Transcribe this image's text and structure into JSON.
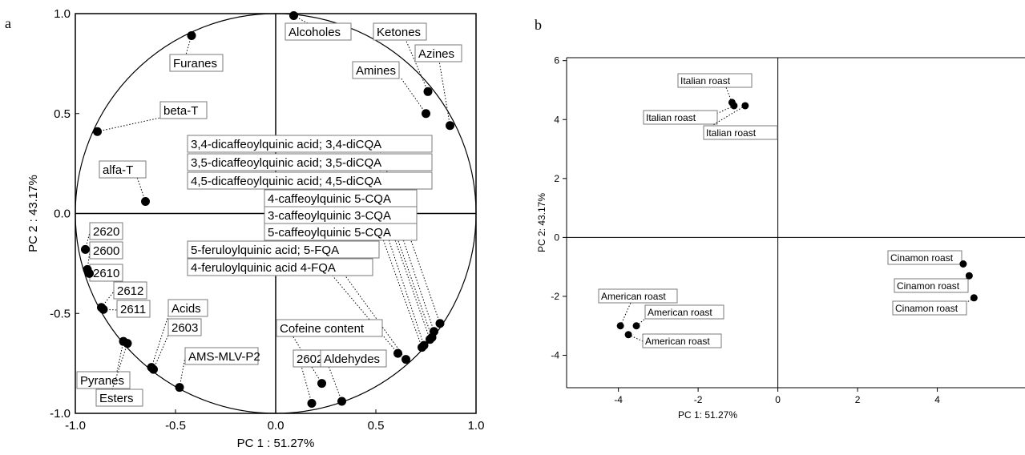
{
  "panel_letters": {
    "a": "a",
    "b": "b"
  },
  "chart_data": [
    {
      "panel": "a",
      "type": "scatter",
      "subtype": "PCA loadings plot with unit correlation circle",
      "xlabel": "PC 1 : 51.27%",
      "ylabel": "PC 2 : 43.17%",
      "xlim": [
        -1.0,
        1.0
      ],
      "ylim": [
        -1.0,
        1.0
      ],
      "xticks": [
        "-1.0",
        "-0.5",
        "0.0",
        "0.5",
        "1.0"
      ],
      "yticks": [
        "-1.0",
        "-0.5",
        "0.0",
        "0.5",
        "1.0"
      ],
      "grid": false,
      "reference_lines": "x=0 and y=0",
      "points": [
        {
          "label": "Alcoholes",
          "x": 0.09,
          "y": 0.99
        },
        {
          "label": "Furanes",
          "x": -0.42,
          "y": 0.89
        },
        {
          "label": "Ketones",
          "x": 0.76,
          "y": 0.61
        },
        {
          "label": "Amines",
          "x": 0.75,
          "y": 0.5
        },
        {
          "label": "Azines",
          "x": 0.87,
          "y": 0.44
        },
        {
          "label": "beta-T",
          "x": -0.89,
          "y": 0.41
        },
        {
          "label": "alfa-T",
          "x": -0.65,
          "y": 0.06
        },
        {
          "label": "3,4-dicaffeoylquinic acid; 3,4-diCQA",
          "x": 0.82,
          "y": -0.55
        },
        {
          "label": "3,5-dicaffeoylquinic acid; 3,5-diCQA",
          "x": 0.79,
          "y": -0.59
        },
        {
          "label": "4,5-dicaffeoylquinic acid; 4,5-diCQA",
          "x": 0.78,
          "y": -0.62
        },
        {
          "label": "4-caffeoylquinic 5-CQA",
          "x": 0.77,
          "y": -0.63
        },
        {
          "label": "3-caffeoylquinic 3-CQA",
          "x": 0.74,
          "y": -0.66
        },
        {
          "label": "5-caffeoylquinic 5-CQA",
          "x": 0.73,
          "y": -0.67
        },
        {
          "label": "5-feruloylquinic acid; 5-FQA",
          "x": 0.65,
          "y": -0.73
        },
        {
          "label": "4-feruloylquinic acid 4-FQA",
          "x": 0.61,
          "y": -0.7
        },
        {
          "label": "Cofeine content",
          "x": 0.23,
          "y": -0.85
        },
        {
          "label": "2602",
          "x": 0.18,
          "y": -0.95
        },
        {
          "label": "Aldehydes",
          "x": 0.33,
          "y": -0.94
        },
        {
          "label": "2620",
          "x": -0.95,
          "y": -0.18
        },
        {
          "label": "2600",
          "x": -0.94,
          "y": -0.28
        },
        {
          "label": "2610",
          "x": -0.93,
          "y": -0.3
        },
        {
          "label": "2612",
          "x": -0.87,
          "y": -0.47
        },
        {
          "label": "2611",
          "x": -0.86,
          "y": -0.48
        },
        {
          "label": "Acids",
          "x": -0.62,
          "y": -0.77
        },
        {
          "label": "2603",
          "x": -0.61,
          "y": -0.78
        },
        {
          "label": "AMS-MLV-P2",
          "x": -0.48,
          "y": -0.87
        },
        {
          "label": "Pyranes",
          "x": -0.76,
          "y": -0.64
        },
        {
          "label": "Esters",
          "x": -0.74,
          "y": -0.65
        }
      ]
    },
    {
      "panel": "b",
      "type": "scatter",
      "subtype": "PCA scores plot",
      "xlabel": "PC 1: 51.27%",
      "ylabel": "PC 2: 43.17%",
      "xlim": [
        -5.3,
        6.2
      ],
      "ylim": [
        -5.1,
        6.1
      ],
      "xticks": [
        "-4",
        "-2",
        "0",
        "2",
        "4"
      ],
      "yticks": [
        "-4",
        "-2",
        "0",
        "2",
        "4",
        "6"
      ],
      "grid": false,
      "reference_lines": "x=0 and y=0",
      "points": [
        {
          "label": "Italian roast",
          "x": -1.15,
          "y": 4.58
        },
        {
          "label": "Italian roast",
          "x": -1.1,
          "y": 4.47
        },
        {
          "label": "Italian roast",
          "x": -0.82,
          "y": 4.47
        },
        {
          "label": "Cinamon roast",
          "x": 4.65,
          "y": -0.9
        },
        {
          "label": "Cinamon roast",
          "x": 4.8,
          "y": -1.3
        },
        {
          "label": "Cinamon roast",
          "x": 4.92,
          "y": -2.05
        },
        {
          "label": "American roast",
          "x": -3.95,
          "y": -3.0
        },
        {
          "label": "American roast",
          "x": -3.55,
          "y": -3.0
        },
        {
          "label": "American roast",
          "x": -3.75,
          "y": -3.3
        }
      ]
    }
  ]
}
